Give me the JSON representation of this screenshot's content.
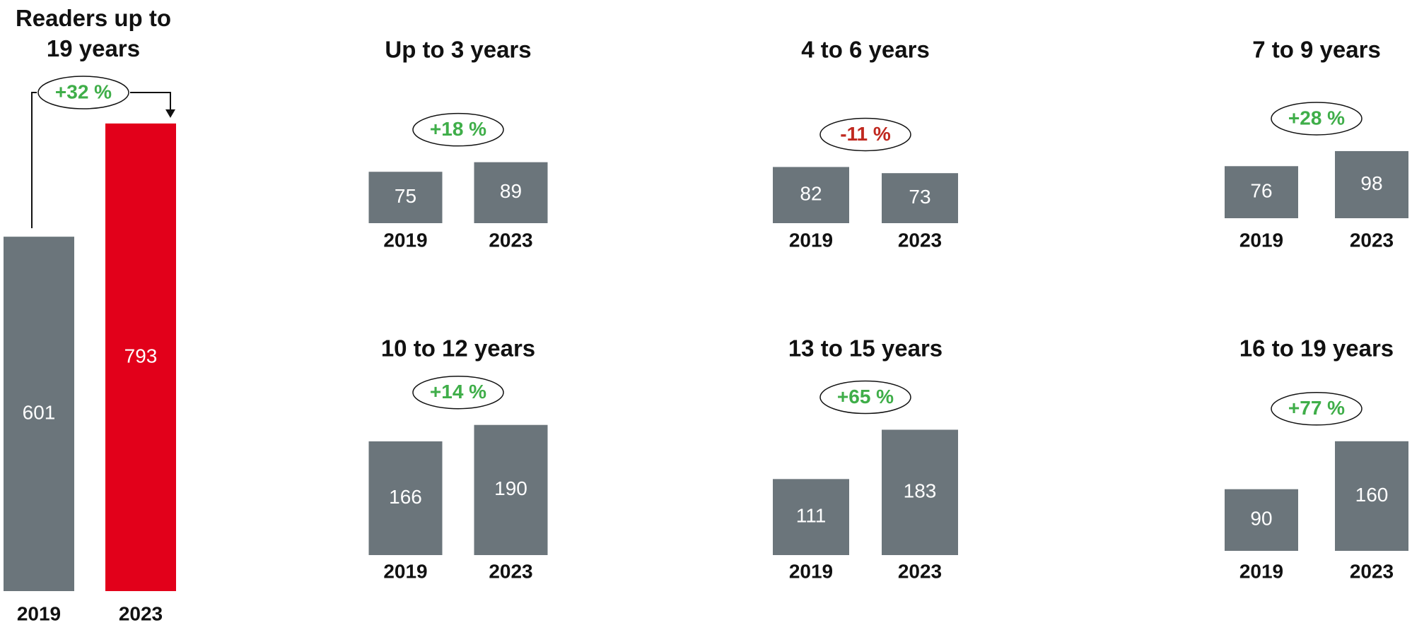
{
  "chart_data": [
    {
      "type": "bar",
      "title": "Readers up to 19 years",
      "categories": [
        "2019",
        "2023"
      ],
      "values": [
        601,
        793
      ],
      "colors": [
        "#6b757b",
        "#e2001a"
      ],
      "annotation": "+32 %",
      "annotation_color": "#3fae49"
    },
    {
      "type": "bar",
      "title": "Up to 3 years",
      "categories": [
        "2019",
        "2023"
      ],
      "values": [
        75,
        89
      ],
      "colors": [
        "#6b757b",
        "#6b757b"
      ],
      "annotation": "+18 %",
      "annotation_color": "#3fae49"
    },
    {
      "type": "bar",
      "title": "4 to 6 years",
      "categories": [
        "2019",
        "2023"
      ],
      "values": [
        82,
        73
      ],
      "colors": [
        "#6b757b",
        "#6b757b"
      ],
      "annotation": "-11 %",
      "annotation_color": "#c0281f"
    },
    {
      "type": "bar",
      "title": "7 to 9 years",
      "categories": [
        "2019",
        "2023"
      ],
      "values": [
        76,
        98
      ],
      "colors": [
        "#6b757b",
        "#6b757b"
      ],
      "annotation": "+28 %",
      "annotation_color": "#3fae49"
    },
    {
      "type": "bar",
      "title": "10 to 12 years",
      "categories": [
        "2019",
        "2023"
      ],
      "values": [
        166,
        190
      ],
      "colors": [
        "#6b757b",
        "#6b757b"
      ],
      "annotation": "+14 %",
      "annotation_color": "#3fae49"
    },
    {
      "type": "bar",
      "title": "13 to 15 years",
      "categories": [
        "2019",
        "2023"
      ],
      "values": [
        111,
        183
      ],
      "colors": [
        "#6b757b",
        "#6b757b"
      ],
      "annotation": "+65 %",
      "annotation_color": "#3fae49"
    },
    {
      "type": "bar",
      "title": "16 to 19 years",
      "categories": [
        "2019",
        "2023"
      ],
      "values": [
        90,
        160
      ],
      "colors": [
        "#6b757b",
        "#6b757b"
      ],
      "annotation": "+77 %",
      "annotation_color": "#3fae49"
    }
  ]
}
